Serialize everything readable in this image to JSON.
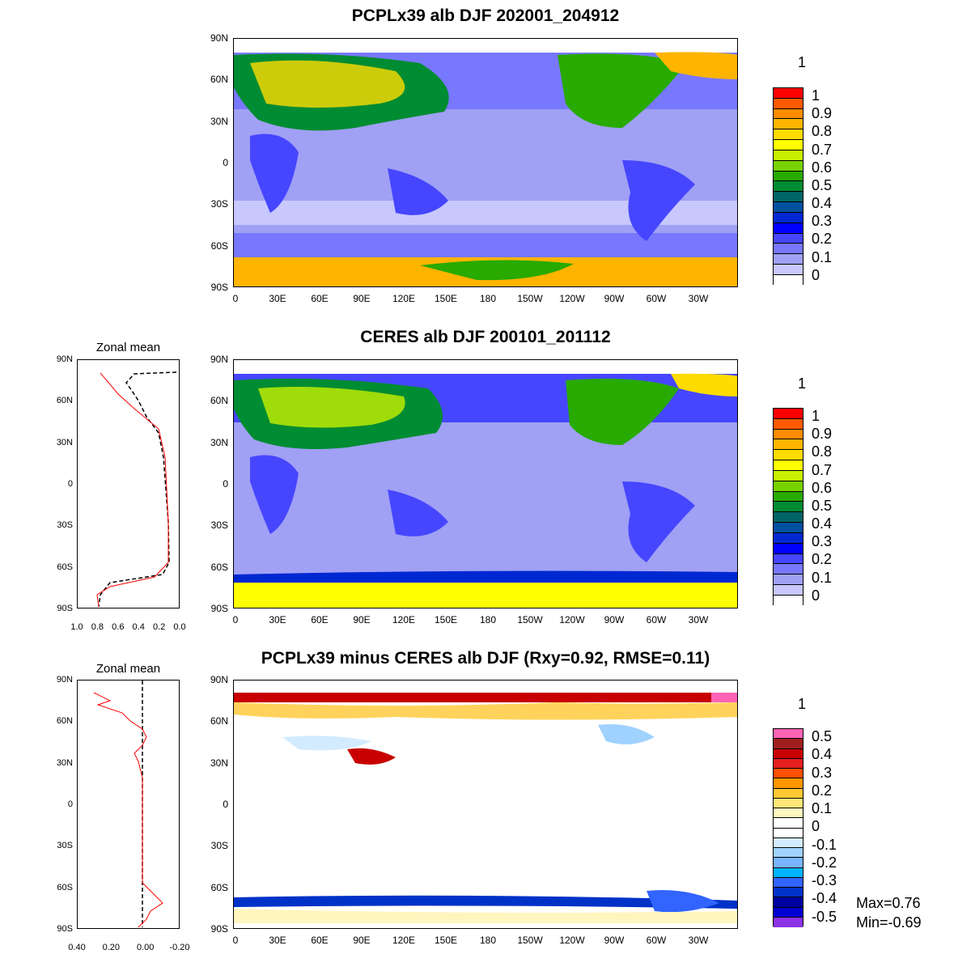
{
  "panels": [
    {
      "title": "PCPLx39 alb DJF 202001_204912",
      "unit": "1"
    },
    {
      "title": "CERES alb DJF 200101_201112",
      "unit": "1"
    },
    {
      "title": "PCPLx39 minus CERES alb DJF (Rxy=0.92, RMSE=0.11)",
      "unit": "1"
    }
  ],
  "lat_ticks": [
    "90N",
    "60N",
    "30N",
    "0",
    "30S",
    "60S",
    "90S"
  ],
  "lon_ticks": [
    "0",
    "30E",
    "60E",
    "90E",
    "120E",
    "150E",
    "180",
    "150W",
    "120W",
    "90W",
    "60W",
    "30W"
  ],
  "abs_colorbar": {
    "labels": [
      "1",
      "0.9",
      "0.8",
      "0.7",
      "0.6",
      "0.5",
      "0.4",
      "0.3",
      "0.2",
      "0.1",
      "0"
    ],
    "colors": [
      "#ff0000",
      "#ff5a00",
      "#ff8c00",
      "#ffb400",
      "#ffdc00",
      "#ffff00",
      "#c8f000",
      "#78d200",
      "#28aa00",
      "#008c32",
      "#006464",
      "#0050a0",
      "#0028d2",
      "#0000ff",
      "#4646ff",
      "#7878ff",
      "#a0a0f5",
      "#c8c8ff",
      "#ffffff"
    ]
  },
  "diff_colorbar": {
    "labels": [
      "0.5",
      "0.4",
      "0.3",
      "0.2",
      "0.1",
      "0",
      "-0.1",
      "-0.2",
      "-0.3",
      "-0.4",
      "-0.5"
    ],
    "colors": [
      "#ff64b4",
      "#a01e1e",
      "#c80000",
      "#e61e1e",
      "#ff5000",
      "#ff9600",
      "#ffc832",
      "#ffe678",
      "#fff5be",
      "#ffffff",
      "#ffffff",
      "#d2ebff",
      "#a0d2ff",
      "#78b4ff",
      "#00b4ff",
      "#3264ff",
      "#0032c8",
      "#0000a0",
      "#0000d2",
      "#8c32e6"
    ]
  },
  "zonal_mean": {
    "title": "Zonal mean",
    "abs_xticks": [
      "1.0",
      "0.8",
      "0.6",
      "0.4",
      "0.2",
      "0.0"
    ],
    "diff_xticks": [
      "0.40",
      "0.20",
      "0.00",
      "-0.20"
    ]
  },
  "stats": {
    "max": "Max=0.76",
    "min": "Min=-0.69"
  }
}
